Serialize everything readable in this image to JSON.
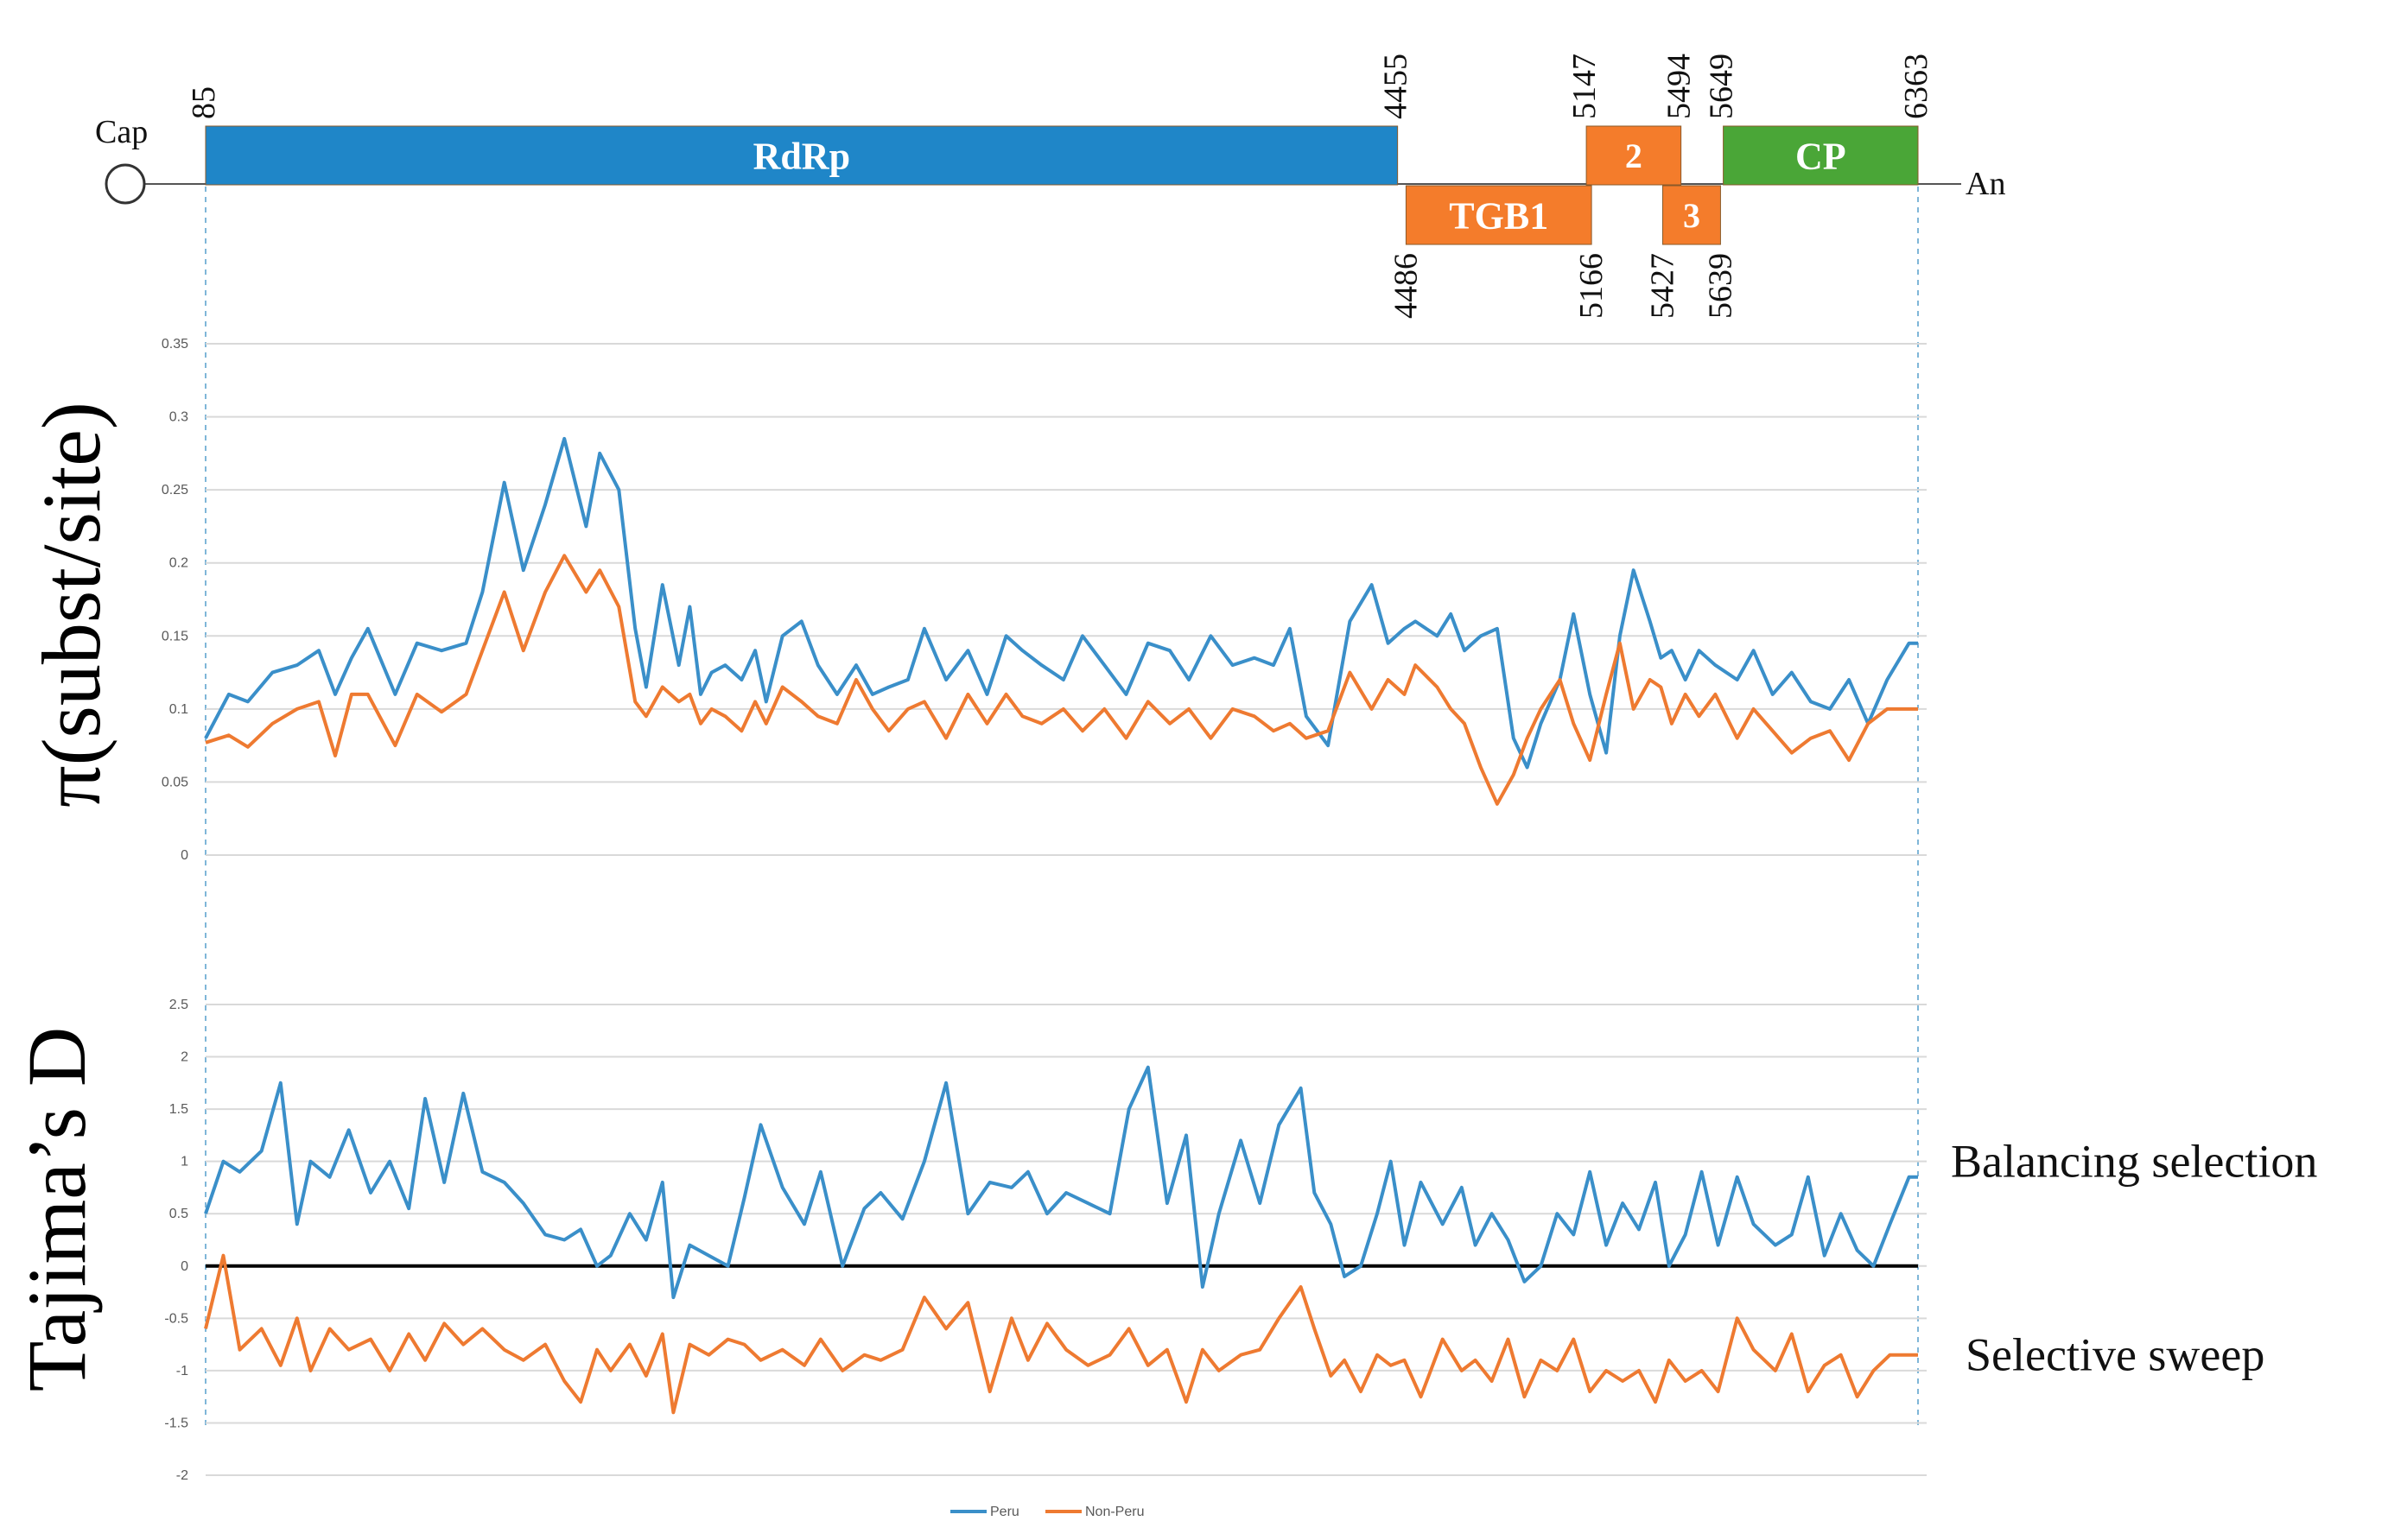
{
  "genome": {
    "cap_label": "Cap",
    "end_label": "An",
    "start": 85,
    "end": 6363,
    "genes": [
      {
        "id": "rdrp",
        "label": "RdRp",
        "start": 85,
        "end": 4455,
        "row": "top",
        "color": "#1f86c8",
        "start_label": "85",
        "end_label": "4455",
        "label_side": "top"
      },
      {
        "id": "tgb1",
        "label": "TGB1",
        "start": 4486,
        "end": 5166,
        "row": "bottom",
        "color": "#f47c2b",
        "start_label": "4486",
        "end_label": "5166",
        "label_side": "bottom"
      },
      {
        "id": "tgb2",
        "label": "2",
        "start": 5147,
        "end": 5494,
        "row": "top",
        "color": "#f47c2b",
        "start_label": "5147",
        "end_label": "5494",
        "label_side": "top"
      },
      {
        "id": "tgb3",
        "label": "3",
        "start": 5427,
        "end": 5639,
        "row": "bottom",
        "color": "#f47c2b",
        "start_label": "5427",
        "end_label": "5639",
        "label_side": "bottom"
      },
      {
        "id": "cp",
        "label": "CP",
        "start": 5649,
        "end": 6363,
        "row": "top",
        "color": "#4aa637",
        "start_label": "5649",
        "end_label": "6363",
        "label_side": "top"
      }
    ]
  },
  "chart_data": [
    {
      "id": "pi",
      "type": "line",
      "ylabel": "π(subst/site)",
      "yticks": [
        "0",
        "0.05",
        "0.1",
        "0.15",
        "0.2",
        "0.25",
        "0.3",
        "0.35"
      ],
      "ylim": [
        0,
        0.35
      ],
      "xlim": [
        85,
        6363
      ],
      "series": [
        {
          "name": "Peru",
          "color": "#3a8fc9",
          "x": [
            85,
            170,
            240,
            330,
            420,
            500,
            560,
            620,
            680,
            780,
            860,
            950,
            1040,
            1100,
            1180,
            1250,
            1330,
            1400,
            1480,
            1530,
            1600,
            1660,
            1700,
            1760,
            1820,
            1860,
            1900,
            1940,
            1990,
            2050,
            2100,
            2140,
            2200,
            2270,
            2330,
            2400,
            2470,
            2530,
            2590,
            2660,
            2720,
            2800,
            2880,
            2950,
            3020,
            3080,
            3150,
            3230,
            3300,
            3380,
            3460,
            3540,
            3620,
            3690,
            3770,
            3850,
            3930,
            4000,
            4060,
            4120,
            4200,
            4280,
            4360,
            4420,
            4480,
            4520,
            4600,
            4650,
            4700,
            4760,
            4820,
            4880,
            4930,
            4980,
            5050,
            5100,
            5160,
            5220,
            5270,
            5320,
            5380,
            5420,
            5460,
            5510,
            5560,
            5620,
            5700,
            5760,
            5830,
            5900,
            5970,
            6040,
            6110,
            6180,
            6250,
            6330,
            6363
          ],
          "y": [
            0.08,
            0.11,
            0.105,
            0.125,
            0.13,
            0.14,
            0.11,
            0.135,
            0.155,
            0.11,
            0.145,
            0.14,
            0.145,
            0.18,
            0.255,
            0.195,
            0.24,
            0.285,
            0.225,
            0.275,
            0.25,
            0.155,
            0.115,
            0.185,
            0.13,
            0.17,
            0.11,
            0.125,
            0.13,
            0.12,
            0.14,
            0.105,
            0.15,
            0.16,
            0.13,
            0.11,
            0.13,
            0.11,
            0.115,
            0.12,
            0.155,
            0.12,
            0.14,
            0.11,
            0.15,
            0.14,
            0.13,
            0.12,
            0.15,
            0.13,
            0.11,
            0.145,
            0.14,
            0.12,
            0.15,
            0.13,
            0.135,
            0.13,
            0.155,
            0.095,
            0.075,
            0.16,
            0.185,
            0.145,
            0.155,
            0.16,
            0.15,
            0.165,
            0.14,
            0.15,
            0.155,
            0.08,
            0.06,
            0.09,
            0.12,
            0.165,
            0.11,
            0.07,
            0.15,
            0.195,
            0.16,
            0.135,
            0.14,
            0.12,
            0.14,
            0.13,
            0.12,
            0.14,
            0.11,
            0.125,
            0.105,
            0.1,
            0.12,
            0.09,
            0.12,
            0.145,
            0.145
          ]
        },
        {
          "name": "Non-Peru",
          "color": "#ee7a31",
          "x": [
            85,
            170,
            240,
            330,
            420,
            500,
            560,
            620,
            680,
            780,
            860,
            950,
            1040,
            1100,
            1180,
            1250,
            1330,
            1400,
            1480,
            1530,
            1600,
            1660,
            1700,
            1760,
            1820,
            1860,
            1900,
            1940,
            1990,
            2050,
            2100,
            2140,
            2200,
            2270,
            2330,
            2400,
            2470,
            2530,
            2590,
            2660,
            2720,
            2800,
            2880,
            2950,
            3020,
            3080,
            3150,
            3230,
            3300,
            3380,
            3460,
            3540,
            3620,
            3690,
            3770,
            3850,
            3930,
            4000,
            4060,
            4120,
            4200,
            4280,
            4360,
            4420,
            4480,
            4520,
            4600,
            4650,
            4700,
            4760,
            4820,
            4880,
            4930,
            4980,
            5050,
            5100,
            5160,
            5220,
            5270,
            5320,
            5380,
            5420,
            5460,
            5510,
            5560,
            5620,
            5700,
            5760,
            5830,
            5900,
            5970,
            6040,
            6110,
            6180,
            6250,
            6330,
            6363
          ],
          "y": [
            0.077,
            0.082,
            0.074,
            0.09,
            0.1,
            0.105,
            0.068,
            0.11,
            0.11,
            0.075,
            0.11,
            0.098,
            0.11,
            0.14,
            0.18,
            0.14,
            0.18,
            0.205,
            0.18,
            0.195,
            0.17,
            0.105,
            0.095,
            0.115,
            0.105,
            0.11,
            0.09,
            0.1,
            0.095,
            0.085,
            0.105,
            0.09,
            0.115,
            0.105,
            0.095,
            0.09,
            0.12,
            0.1,
            0.085,
            0.1,
            0.105,
            0.08,
            0.11,
            0.09,
            0.11,
            0.095,
            0.09,
            0.1,
            0.085,
            0.1,
            0.08,
            0.105,
            0.09,
            0.1,
            0.08,
            0.1,
            0.095,
            0.085,
            0.09,
            0.08,
            0.085,
            0.125,
            0.1,
            0.12,
            0.11,
            0.13,
            0.115,
            0.1,
            0.09,
            0.06,
            0.035,
            0.055,
            0.08,
            0.1,
            0.12,
            0.09,
            0.065,
            0.11,
            0.145,
            0.1,
            0.12,
            0.115,
            0.09,
            0.11,
            0.095,
            0.11,
            0.08,
            0.1,
            0.085,
            0.07,
            0.08,
            0.085,
            0.065,
            0.09,
            0.1,
            0.1,
            0.1
          ]
        }
      ]
    },
    {
      "id": "tajima",
      "type": "line",
      "ylabel": "Tajima’s D",
      "yticks": [
        "-2",
        "-1.5",
        "-1",
        "-0.5",
        "0",
        "0.5",
        "1",
        "1.5",
        "2",
        "2.5"
      ],
      "ylim": [
        -2,
        2.5
      ],
      "xlim": [
        85,
        6363
      ],
      "zero_line": true,
      "annotations": [
        {
          "text": "Balancing selection",
          "y": 1
        },
        {
          "text": "Selective sweep",
          "y": -0.85
        }
      ],
      "series": [
        {
          "name": "Peru",
          "color": "#3a8fc9",
          "x": [
            85,
            150,
            210,
            290,
            360,
            420,
            470,
            540,
            610,
            690,
            760,
            830,
            890,
            960,
            1030,
            1100,
            1180,
            1250,
            1330,
            1400,
            1460,
            1520,
            1570,
            1640,
            1700,
            1760,
            1800,
            1860,
            1930,
            2000,
            2060,
            2120,
            2200,
            2280,
            2340,
            2420,
            2500,
            2560,
            2640,
            2720,
            2800,
            2880,
            2960,
            3040,
            3100,
            3170,
            3240,
            3320,
            3400,
            3470,
            3540,
            3610,
            3680,
            3740,
            3800,
            3880,
            3950,
            4020,
            4100,
            4150,
            4210,
            4260,
            4320,
            4380,
            4430,
            4480,
            4540,
            4620,
            4690,
            4740,
            4800,
            4860,
            4920,
            4980,
            5040,
            5100,
            5160,
            5220,
            5280,
            5340,
            5400,
            5450,
            5510,
            5570,
            5630,
            5700,
            5760,
            5840,
            5900,
            5960,
            6020,
            6080,
            6140,
            6200,
            6260,
            6330,
            6363
          ],
          "y": [
            0.5,
            1.0,
            0.9,
            1.1,
            1.75,
            0.4,
            1.0,
            0.85,
            1.3,
            0.7,
            1.0,
            0.55,
            1.6,
            0.8,
            1.65,
            0.9,
            0.8,
            0.6,
            0.3,
            0.25,
            0.35,
            0.0,
            0.1,
            0.5,
            0.25,
            0.8,
            -0.3,
            0.2,
            0.1,
            0.0,
            0.65,
            1.35,
            0.75,
            0.4,
            0.9,
            0.0,
            0.55,
            0.7,
            0.45,
            1.0,
            1.75,
            0.5,
            0.8,
            0.75,
            0.9,
            0.5,
            0.7,
            0.6,
            0.5,
            1.5,
            1.9,
            0.6,
            1.25,
            -0.2,
            0.5,
            1.2,
            0.6,
            1.35,
            1.7,
            0.7,
            0.4,
            -0.1,
            0.0,
            0.5,
            1.0,
            0.2,
            0.8,
            0.4,
            0.75,
            0.2,
            0.5,
            0.25,
            -0.15,
            0.0,
            0.5,
            0.3,
            0.9,
            0.2,
            0.6,
            0.35,
            0.8,
            0.0,
            0.3,
            0.9,
            0.2,
            0.85,
            0.4,
            0.2,
            0.3,
            0.85,
            0.1,
            0.5,
            0.15,
            0.0,
            0.4,
            0.85,
            0.85
          ]
        },
        {
          "name": "Non-Peru",
          "color": "#ee7a31",
          "x": [
            85,
            150,
            210,
            290,
            360,
            420,
            470,
            540,
            610,
            690,
            760,
            830,
            890,
            960,
            1030,
            1100,
            1180,
            1250,
            1330,
            1400,
            1460,
            1520,
            1570,
            1640,
            1700,
            1760,
            1800,
            1860,
            1930,
            2000,
            2060,
            2120,
            2200,
            2280,
            2340,
            2420,
            2500,
            2560,
            2640,
            2720,
            2800,
            2880,
            2960,
            3040,
            3100,
            3170,
            3240,
            3320,
            3400,
            3470,
            3540,
            3610,
            3680,
            3740,
            3800,
            3880,
            3950,
            4020,
            4100,
            4150,
            4210,
            4260,
            4320,
            4380,
            4430,
            4480,
            4540,
            4620,
            4690,
            4740,
            4800,
            4860,
            4920,
            4980,
            5040,
            5100,
            5160,
            5220,
            5280,
            5340,
            5400,
            5450,
            5510,
            5570,
            5630,
            5700,
            5760,
            5840,
            5900,
            5960,
            6020,
            6080,
            6140,
            6200,
            6260,
            6330,
            6363
          ],
          "y": [
            -0.6,
            0.1,
            -0.8,
            -0.6,
            -0.95,
            -0.5,
            -1.0,
            -0.6,
            -0.8,
            -0.7,
            -1.0,
            -0.65,
            -0.9,
            -0.55,
            -0.75,
            -0.6,
            -0.8,
            -0.9,
            -0.75,
            -1.1,
            -1.3,
            -0.8,
            -1.0,
            -0.75,
            -1.05,
            -0.65,
            -1.4,
            -0.75,
            -0.85,
            -0.7,
            -0.75,
            -0.9,
            -0.8,
            -0.95,
            -0.7,
            -1.0,
            -0.85,
            -0.9,
            -0.8,
            -0.3,
            -0.6,
            -0.35,
            -1.2,
            -0.5,
            -0.9,
            -0.55,
            -0.8,
            -0.95,
            -0.85,
            -0.6,
            -0.95,
            -0.8,
            -1.3,
            -0.8,
            -1.0,
            -0.85,
            -0.8,
            -0.5,
            -0.2,
            -0.6,
            -1.05,
            -0.9,
            -1.2,
            -0.85,
            -0.95,
            -0.9,
            -1.25,
            -0.7,
            -1.0,
            -0.9,
            -1.1,
            -0.7,
            -1.25,
            -0.9,
            -1.0,
            -0.7,
            -1.2,
            -1.0,
            -1.1,
            -1.0,
            -1.3,
            -0.9,
            -1.1,
            -1.0,
            -1.2,
            -0.5,
            -0.8,
            -1.0,
            -0.65,
            -1.2,
            -0.95,
            -0.85,
            -1.25,
            -1.0,
            -0.85,
            -0.85,
            -0.85
          ]
        }
      ],
      "legend": {
        "position": "bottom-center",
        "entries": [
          "Peru",
          "Non-Peru"
        ]
      }
    }
  ]
}
